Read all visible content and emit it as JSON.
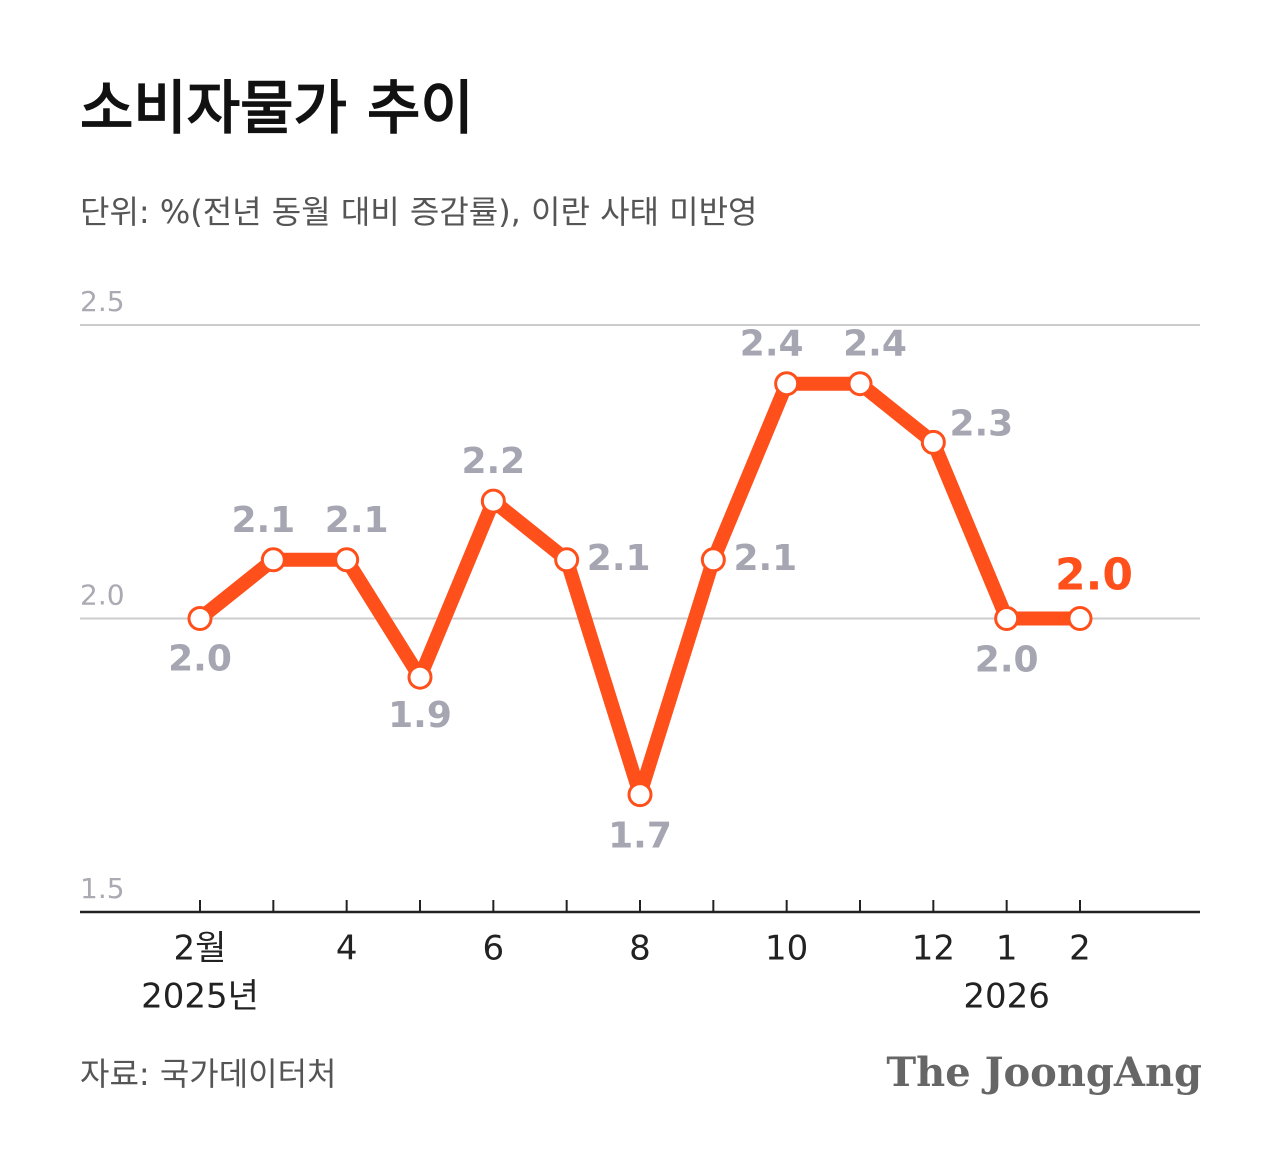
{
  "chart_data": {
    "type": "line",
    "title": "소비자물가 추이",
    "subtitle": "단위: %(전년 동월 대비 증감률), 이란 사태 미반영",
    "source": "자료: 국가데이터처",
    "brand": "The JoongAng",
    "categories": [
      "2월",
      null,
      "4",
      null,
      "6",
      null,
      "8",
      null,
      "10",
      null,
      "12",
      "1",
      "2"
    ],
    "category_sublabels": [
      "2025년",
      null,
      null,
      null,
      null,
      null,
      null,
      null,
      null,
      null,
      null,
      "2026",
      null
    ],
    "values": [
      2.0,
      2.1,
      2.1,
      1.9,
      2.2,
      2.1,
      1.7,
      2.1,
      2.4,
      2.4,
      2.3,
      2.0,
      2.0
    ],
    "value_labels": [
      "2.0",
      "2.1",
      "2.1",
      "1.9",
      "2.2",
      "2.1",
      "1.7",
      "2.1",
      "2.4",
      "2.4",
      "2.3",
      "2.0",
      "2.0"
    ],
    "color": "#ff4f1a",
    "ylim": [
      1.5,
      2.5
    ],
    "yticks": [
      1.5,
      {
        "value": 2,
        "label": "2.0"
      },
      2.5
    ],
    "grid": true
  }
}
